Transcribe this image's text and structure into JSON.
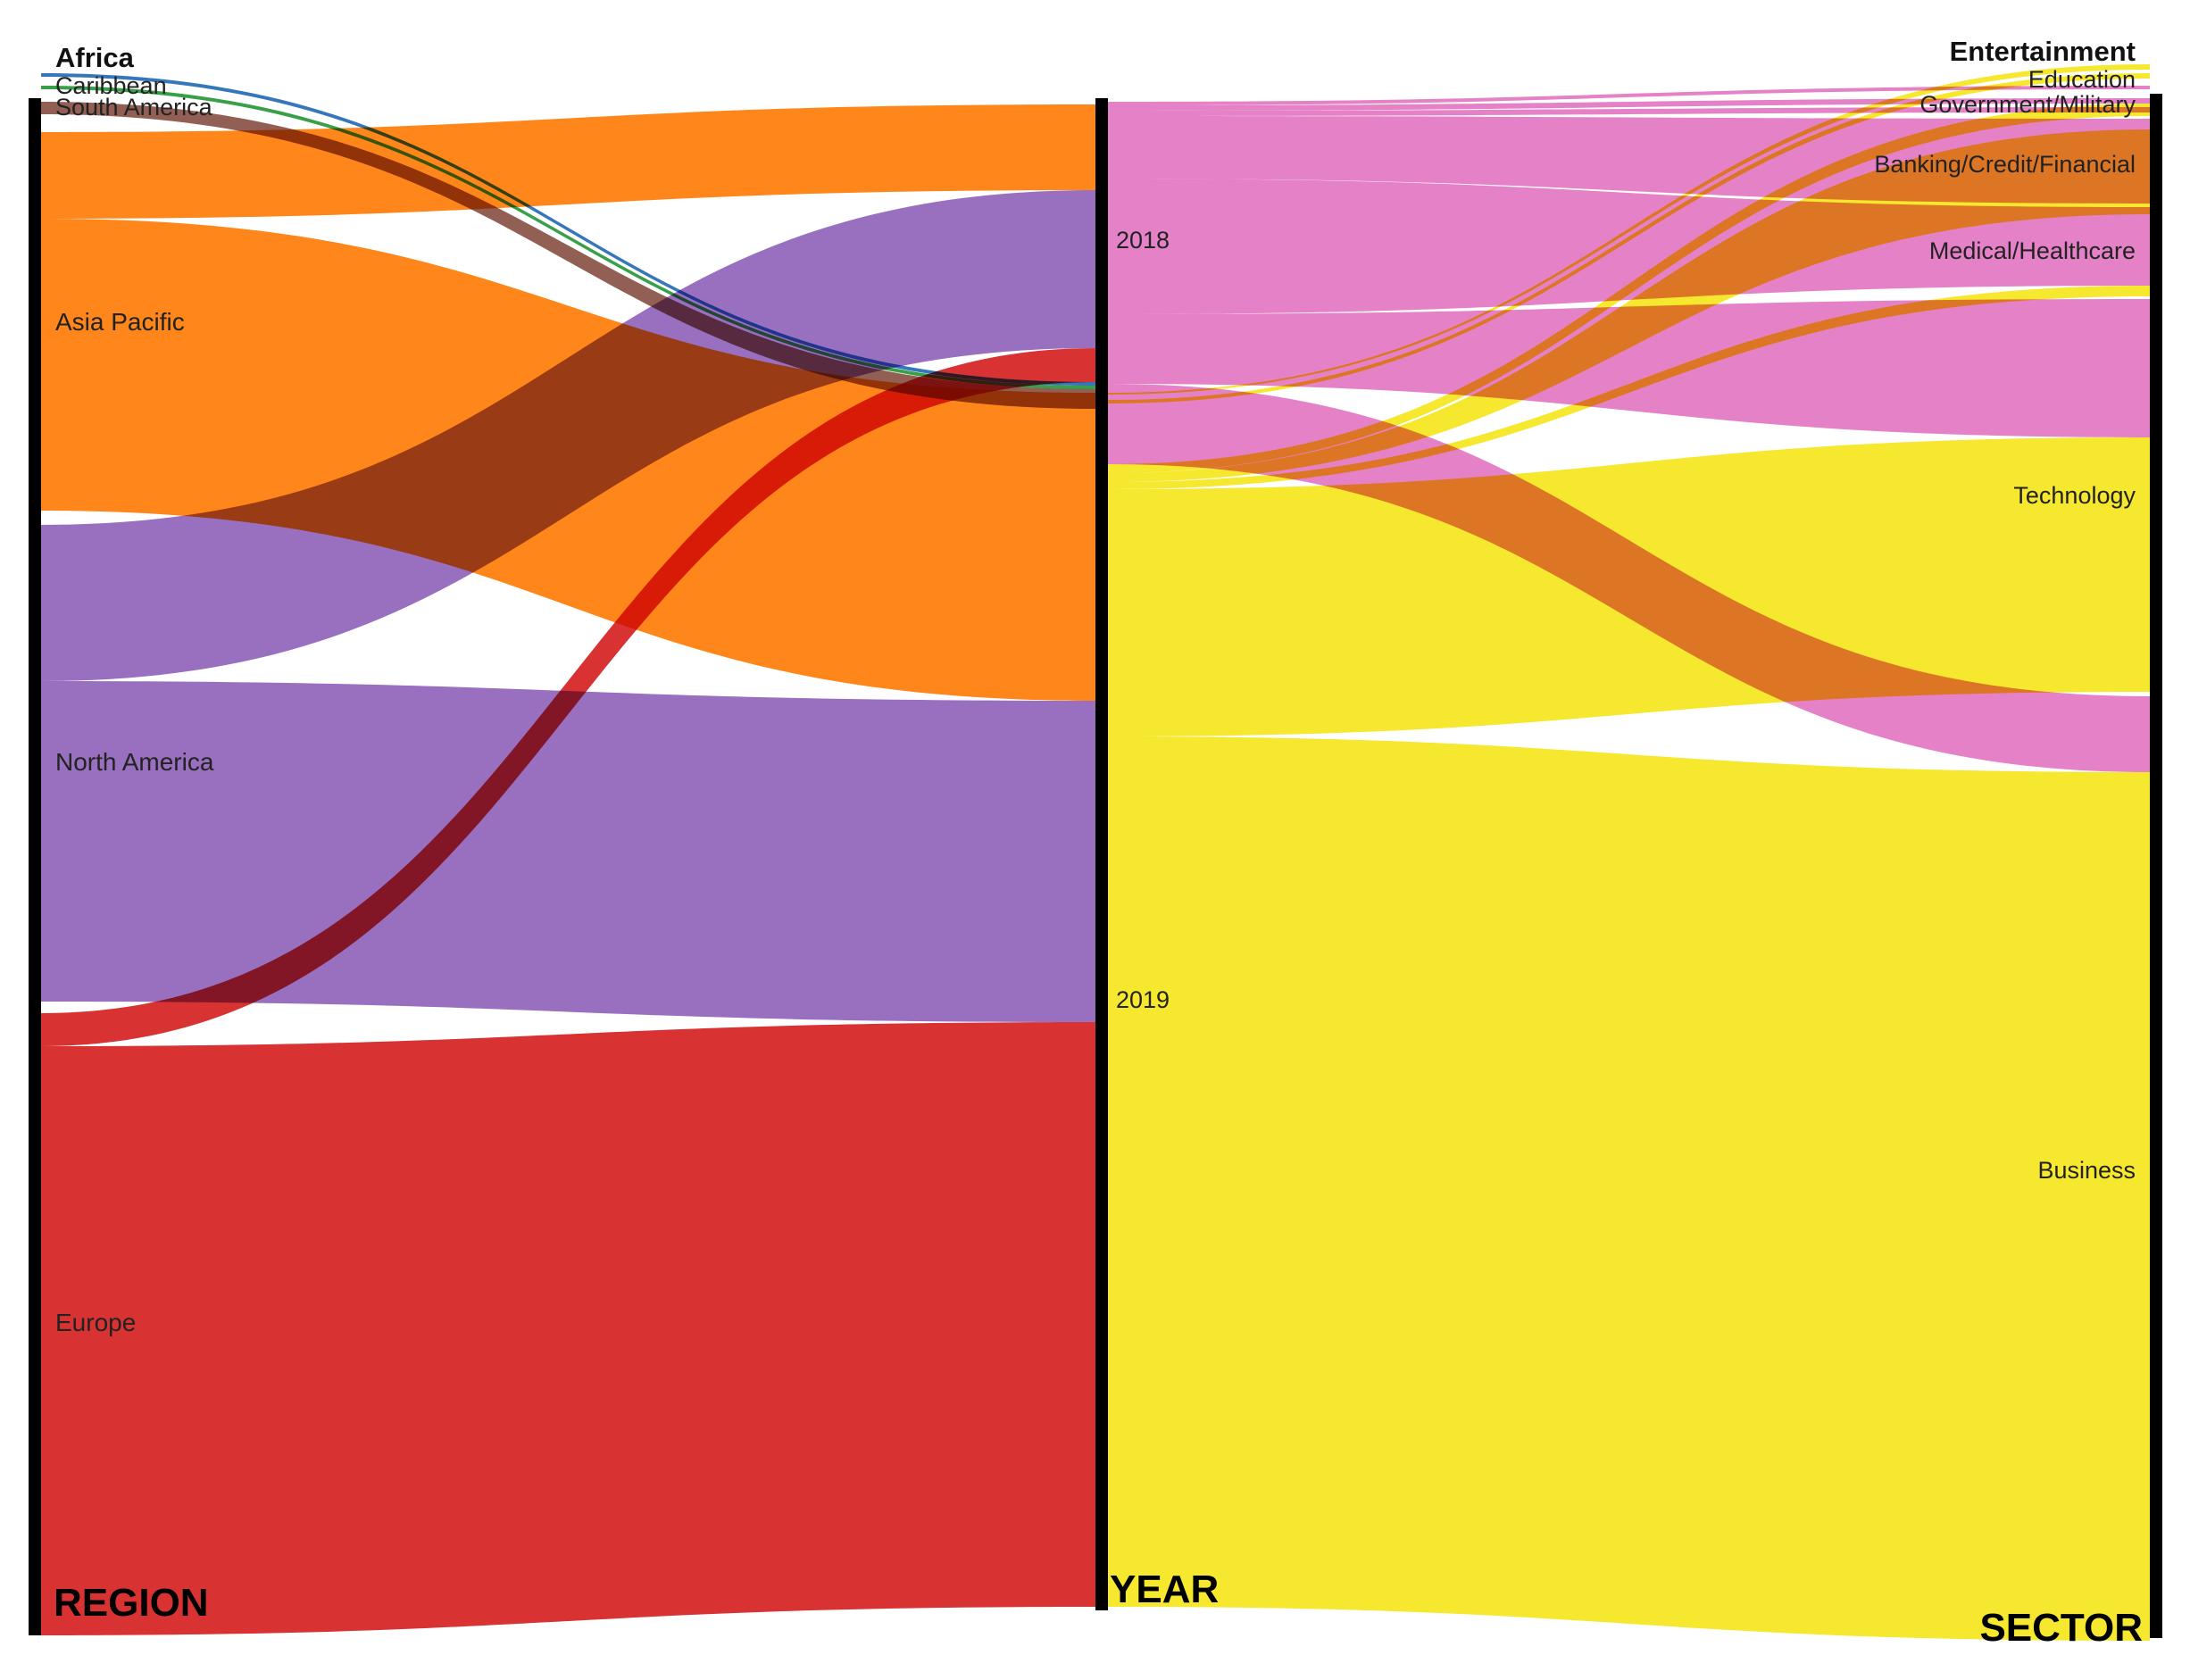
{
  "axes": {
    "region": "REGION",
    "year": "YEAR",
    "sector": "SECTOR"
  },
  "regions": [
    {
      "id": "africa",
      "label": "Africa",
      "color": "#2b6fb6"
    },
    {
      "id": "caribbean",
      "label": "Caribbean",
      "color": "#2e9a3e"
    },
    {
      "id": "south_america",
      "label": "South America",
      "color": "#8c564b"
    },
    {
      "id": "asia_pacific",
      "label": "Asia Pacific",
      "color": "#ff7f0e"
    },
    {
      "id": "north_america",
      "label": "North America",
      "color": "#9467bd"
    },
    {
      "id": "europe",
      "label": "Europe",
      "color": "#d62728"
    }
  ],
  "years": [
    {
      "id": "y2018",
      "label": "2018",
      "color": "#e377c2"
    },
    {
      "id": "y2019",
      "label": "2019",
      "color": "#f5e61c"
    }
  ],
  "sectors": [
    {
      "id": "entertainment",
      "label": "Entertainment"
    },
    {
      "id": "education",
      "label": "Education"
    },
    {
      "id": "government",
      "label": "Government/Military"
    },
    {
      "id": "banking",
      "label": "Banking/Credit/Financial"
    },
    {
      "id": "medical",
      "label": "Medical/Healthcare"
    },
    {
      "id": "technology",
      "label": "Technology"
    },
    {
      "id": "business",
      "label": "Business"
    }
  ]
}
